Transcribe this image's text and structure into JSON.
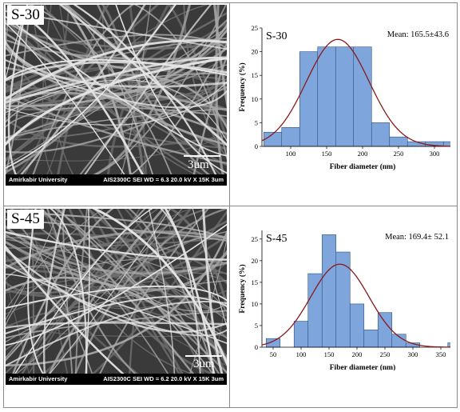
{
  "panels": [
    {
      "label": "S-30",
      "scale_text": "3um",
      "info_left": "Amirkabir University",
      "info_right": "AIS2300C  SEI   WD = 6.3   20.0 kV  X 15K      3um"
    },
    {
      "label": "S-45",
      "scale_text": "3um",
      "info_left": "Amirkabir University",
      "info_right": "AIS2300C  SEI   WD = 6.2   20.0 kV  X 15K      3um"
    }
  ],
  "chart_data": [
    {
      "type": "bar",
      "panel_label": "S-30",
      "annotation": "Mean: 165.5±43.6 nm",
      "xlabel": "Fiber diameter (nm)",
      "ylabel": "Frequency (%)",
      "xlim": [
        60,
        340
      ],
      "ylim": [
        0,
        25
      ],
      "x_ticks": [
        100,
        150,
        200,
        250,
        300
      ],
      "y_ticks": [
        0,
        5,
        10,
        15,
        20,
        25
      ],
      "bins": [
        {
          "start": 62.5,
          "end": 87.5,
          "value": 3
        },
        {
          "start": 87.5,
          "end": 112.5,
          "value": 4
        },
        {
          "start": 112.5,
          "end": 137.5,
          "value": 20
        },
        {
          "start": 137.5,
          "end": 162.5,
          "value": 21
        },
        {
          "start": 162.5,
          "end": 187.5,
          "value": 21
        },
        {
          "start": 187.5,
          "end": 212.5,
          "value": 21
        },
        {
          "start": 212.5,
          "end": 237.5,
          "value": 5
        },
        {
          "start": 237.5,
          "end": 262.5,
          "value": 2
        },
        {
          "start": 262.5,
          "end": 287.5,
          "value": 1
        },
        {
          "start": 287.5,
          "end": 312.5,
          "value": 1
        },
        {
          "start": 312.5,
          "end": 337.5,
          "value": 1
        }
      ],
      "fit": {
        "type": "normal",
        "mean": 165.5,
        "sd": 43.6,
        "peak": 22.6
      },
      "colors": {
        "bar": "#7ea6dc",
        "bar_edge": "#2f4f7f",
        "curve": "#8b1a1a"
      }
    },
    {
      "type": "bar",
      "panel_label": "S-45",
      "annotation": "Mean: 169.4± 52.1 nm",
      "xlabel": "Fiber diameter (nm)",
      "ylabel": "Frequency (%)",
      "xlim": [
        30,
        390
      ],
      "ylim": [
        0,
        27
      ],
      "x_ticks": [
        50,
        100,
        150,
        200,
        250,
        300,
        350
      ],
      "y_ticks": [
        0,
        5,
        10,
        15,
        20,
        25
      ],
      "bins": [
        {
          "start": 37.5,
          "end": 62.5,
          "value": 2
        },
        {
          "start": 87.5,
          "end": 112.5,
          "value": 6
        },
        {
          "start": 112.5,
          "end": 137.5,
          "value": 17
        },
        {
          "start": 137.5,
          "end": 162.5,
          "value": 26
        },
        {
          "start": 162.5,
          "end": 187.5,
          "value": 22
        },
        {
          "start": 187.5,
          "end": 212.5,
          "value": 10
        },
        {
          "start": 212.5,
          "end": 237.5,
          "value": 4
        },
        {
          "start": 237.5,
          "end": 262.5,
          "value": 8
        },
        {
          "start": 262.5,
          "end": 287.5,
          "value": 3
        },
        {
          "start": 287.5,
          "end": 312.5,
          "value": 1
        },
        {
          "start": 362.5,
          "end": 387.5,
          "value": 1
        }
      ],
      "fit": {
        "type": "normal",
        "mean": 169.4,
        "sd": 52.1,
        "peak": 19.2
      },
      "colors": {
        "bar": "#7ea6dc",
        "bar_edge": "#2f4f7f",
        "curve": "#8b1a1a"
      }
    }
  ]
}
